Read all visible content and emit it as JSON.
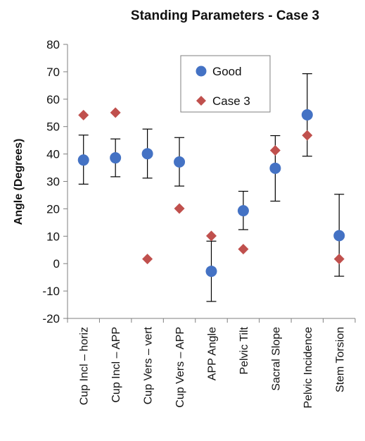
{
  "chart_data": {
    "type": "scatter",
    "title": "Standing Parameters - Case 3",
    "xlabel": "",
    "ylabel": "Angle (Degrees)",
    "ylim": [
      -20,
      80
    ],
    "yticks": [
      -20,
      -10,
      0,
      10,
      20,
      30,
      40,
      50,
      60,
      70,
      80
    ],
    "grid": false,
    "legend_position": "top-center",
    "categories": [
      "Cup  Incl – horiz",
      "Cup Incl – APP",
      "Cup Vers – vert",
      "Cup Vers – APP",
      "APP Angle",
      "Pelvic Tilt",
      "Sacral Slope",
      "Pelvic Incidence",
      "Stem Torsion"
    ],
    "series": [
      {
        "name": "Good",
        "marker": "circle",
        "color": "#4472c4",
        "values": [
          37.8,
          38.6,
          40.1,
          37.1,
          -2.8,
          19.3,
          34.8,
          54.3,
          10.2
        ],
        "error_low": [
          29.0,
          31.7,
          31.2,
          28.3,
          -13.8,
          12.4,
          22.8,
          39.2,
          -4.6
        ],
        "error_high": [
          46.9,
          45.5,
          49.1,
          46.0,
          8.2,
          26.4,
          46.7,
          69.3,
          25.3
        ]
      },
      {
        "name": "Case 3",
        "marker": "diamond",
        "color": "#c0504d",
        "values": [
          54.2,
          55.1,
          1.7,
          20.1,
          10.1,
          5.3,
          41.3,
          46.8,
          1.7
        ]
      }
    ]
  }
}
